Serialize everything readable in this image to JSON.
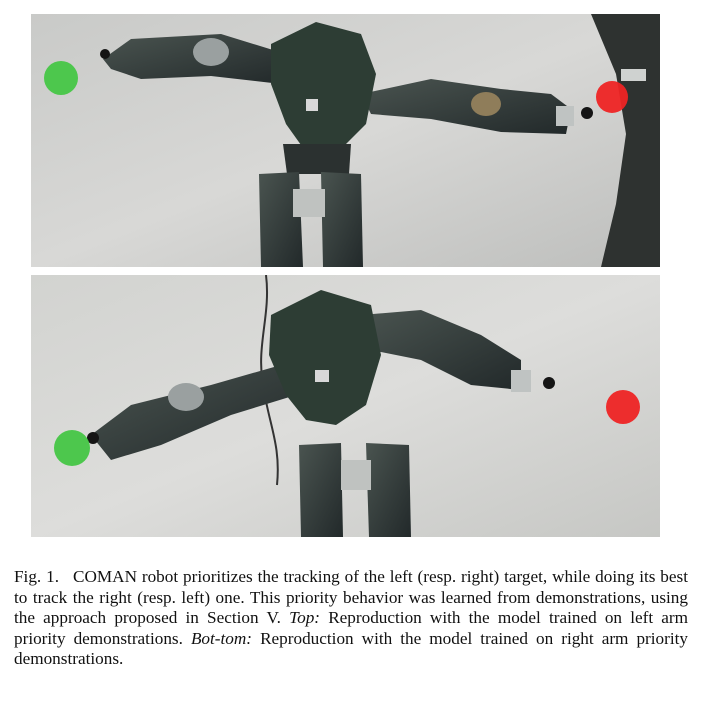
{
  "figure": {
    "photos": [
      {
        "id": "top",
        "target_colors": {
          "left": "#46c646",
          "right": "#ee2424"
        }
      },
      {
        "id": "bottom",
        "target_colors": {
          "left": "#46c646",
          "right": "#ee2424"
        }
      }
    ]
  },
  "caption": {
    "label": "Fig. 1.",
    "text_1": "COMAN robot prioritizes the tracking of the left (resp. right) target, while doing its best to track the right (resp. left) one. This priority behavior was learned from demonstrations, using the approach proposed in Section V. ",
    "top_label": "Top:",
    "text_2": " Reproduction with the model trained on left arm priority demonstrations. ",
    "bottom_label": "Bot-tom:",
    "text_3": " Reproduction with the model trained on right arm priority demonstrations."
  }
}
